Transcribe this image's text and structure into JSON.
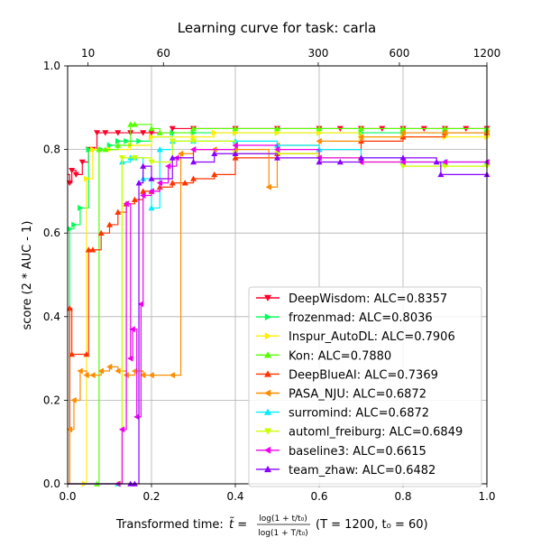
{
  "chart_data": {
    "type": "line",
    "title": "Learning curve for task: carla",
    "xlabel_main": "Transformed time: ",
    "xlabel_tilde": "t̃ = ",
    "xlabel_num": "log(1 + t/t₀)",
    "xlabel_den": "log(1 + T/t₀)",
    "xlabel_params": "(T = 1200,  t₀ = 60)",
    "ylabel": "score (2 * AUC - 1)",
    "xlim": [
      0,
      1
    ],
    "ylim": [
      0,
      1
    ],
    "xticks": [
      0.0,
      0.2,
      0.4,
      0.6,
      0.8,
      1.0
    ],
    "xtick_labels": [
      "0.0",
      "0.2",
      "0.4",
      "0.6",
      "0.8",
      "1.0"
    ],
    "yticks": [
      0.0,
      0.2,
      0.4,
      0.6,
      0.8,
      1.0
    ],
    "ytick_labels": [
      "0.0",
      "0.2",
      "0.4",
      "0.6",
      "0.8",
      "1.0"
    ],
    "top_axis_ticks": [
      {
        "value": 0.0487,
        "label": "10"
      },
      {
        "value": 0.2286,
        "label": "60"
      },
      {
        "value": 0.5977,
        "label": "300"
      },
      {
        "value": 0.7913,
        "label": "600"
      },
      {
        "value": 1.0,
        "label": "1200"
      }
    ],
    "grid": true,
    "legend_position": "lower-right",
    "series": [
      {
        "name": "DeepWisdom: ALC=0.8357",
        "color": "#ff0029",
        "marker": "v",
        "x": [
          0.0,
          0.005,
          0.01,
          0.02,
          0.035,
          0.05,
          0.06,
          0.07,
          0.09,
          0.12,
          0.15,
          0.18,
          0.2,
          0.25,
          0.3,
          0.4,
          0.5,
          0.6,
          0.65,
          0.7,
          0.75,
          0.8,
          0.85,
          0.9,
          0.95,
          1.0
        ],
        "y": [
          0.74,
          0.72,
          0.75,
          0.74,
          0.77,
          0.8,
          0.8,
          0.84,
          0.84,
          0.84,
          0.84,
          0.84,
          0.84,
          0.85,
          0.85,
          0.85,
          0.85,
          0.85,
          0.85,
          0.85,
          0.85,
          0.85,
          0.85,
          0.85,
          0.85,
          0.85
        ]
      },
      {
        "name": "frozenmad: ALC=0.8036",
        "color": "#00ff55",
        "marker": ">",
        "x": [
          0.0,
          0.005,
          0.015,
          0.03,
          0.05,
          0.08,
          0.1,
          0.12,
          0.14,
          0.17,
          0.2,
          0.25,
          0.3,
          0.4,
          0.5,
          0.6,
          0.7,
          0.8,
          0.9,
          1.0
        ],
        "y": [
          0.0,
          0.61,
          0.62,
          0.66,
          0.8,
          0.8,
          0.81,
          0.82,
          0.82,
          0.82,
          0.83,
          0.84,
          0.84,
          0.84,
          0.84,
          0.84,
          0.84,
          0.84,
          0.84,
          0.84
        ]
      },
      {
        "name": "Inspur_AutoDL: ALC=0.7906",
        "color": "#ffee00",
        "marker": ">",
        "x": [
          0.0,
          0.04,
          0.045,
          0.06,
          0.1,
          0.15,
          0.2,
          0.3,
          0.35,
          0.4,
          0.5,
          0.6,
          0.7,
          0.8,
          0.9,
          1.0
        ],
        "y": [
          0.0,
          0.0,
          0.73,
          0.8,
          0.8,
          0.81,
          0.83,
          0.83,
          0.84,
          0.84,
          0.84,
          0.84,
          0.83,
          0.83,
          0.83,
          0.83
        ]
      },
      {
        "name": "Kon: ALC=0.7880",
        "color": "#55ff00",
        "marker": "^",
        "x": [
          0.0,
          0.07,
          0.075,
          0.09,
          0.12,
          0.15,
          0.16,
          0.2,
          0.22,
          0.3,
          0.4,
          0.5,
          0.6,
          0.7,
          0.8,
          0.9,
          1.0
        ],
        "y": [
          0.0,
          0.0,
          0.8,
          0.8,
          0.81,
          0.86,
          0.86,
          0.85,
          0.84,
          0.85,
          0.85,
          0.85,
          0.85,
          0.85,
          0.85,
          0.85,
          0.85
        ]
      },
      {
        "name": "DeepBlueAI: ALC=0.7369",
        "color": "#ff3300",
        "marker": "^",
        "x": [
          0.0,
          0.005,
          0.01,
          0.045,
          0.05,
          0.06,
          0.08,
          0.1,
          0.12,
          0.14,
          0.16,
          0.18,
          0.2,
          0.22,
          0.25,
          0.28,
          0.3,
          0.35,
          0.4,
          0.5,
          0.6,
          0.7,
          0.8,
          0.9,
          1.0
        ],
        "y": [
          0.0,
          0.42,
          0.31,
          0.31,
          0.56,
          0.56,
          0.6,
          0.62,
          0.65,
          0.67,
          0.68,
          0.7,
          0.7,
          0.71,
          0.72,
          0.72,
          0.73,
          0.74,
          0.78,
          0.79,
          0.8,
          0.82,
          0.83,
          0.84,
          0.84
        ]
      },
      {
        "name": "PASA_NJU: ALC=0.6872",
        "color": "#ff8c00",
        "marker": "<",
        "x": [
          0.0,
          0.005,
          0.015,
          0.03,
          0.045,
          0.06,
          0.08,
          0.1,
          0.12,
          0.14,
          0.16,
          0.18,
          0.2,
          0.25,
          0.27,
          0.3,
          0.35,
          0.4,
          0.48,
          0.5,
          0.6,
          0.7,
          0.8,
          0.9,
          1.0
        ],
        "y": [
          0.0,
          0.13,
          0.2,
          0.27,
          0.26,
          0.26,
          0.27,
          0.28,
          0.27,
          0.26,
          0.27,
          0.26,
          0.26,
          0.26,
          0.79,
          0.8,
          0.8,
          0.8,
          0.71,
          0.81,
          0.82,
          0.83,
          0.84,
          0.84,
          0.84
        ]
      },
      {
        "name": "surromind: ALC=0.6872",
        "color": "#00eeff",
        "marker": "^",
        "x": [
          0.0,
          0.12,
          0.13,
          0.15,
          0.16,
          0.18,
          0.2,
          0.22,
          0.25,
          0.3,
          0.4,
          0.5,
          0.6,
          0.7,
          0.8,
          0.9,
          1.0
        ],
        "y": [
          0.0,
          0.0,
          0.77,
          0.78,
          0.78,
          0.73,
          0.66,
          0.8,
          0.82,
          0.82,
          0.82,
          0.81,
          0.8,
          0.78,
          0.77,
          0.77,
          0.77
        ]
      },
      {
        "name": "automl_freiburg: ALC=0.6849",
        "color": "#ccff00",
        "marker": "v",
        "x": [
          0.0,
          0.125,
          0.13,
          0.16,
          0.2,
          0.25,
          0.3,
          0.4,
          0.5,
          0.6,
          0.7,
          0.8,
          0.9,
          1.0
        ],
        "y": [
          0.0,
          0.0,
          0.78,
          0.78,
          0.77,
          0.82,
          0.82,
          0.79,
          0.79,
          0.78,
          0.77,
          0.76,
          0.76,
          0.76
        ]
      },
      {
        "name": "baseline3: ALC=0.6615",
        "color": "#ee00ee",
        "marker": "<",
        "x": [
          0.0,
          0.12,
          0.13,
          0.14,
          0.15,
          0.155,
          0.165,
          0.175,
          0.18,
          0.2,
          0.22,
          0.24,
          0.26,
          0.3,
          0.4,
          0.5,
          0.6,
          0.7,
          0.8,
          0.9,
          1.0
        ],
        "y": [
          0.0,
          0.0,
          0.13,
          0.67,
          0.3,
          0.37,
          0.16,
          0.43,
          0.69,
          0.7,
          0.72,
          0.76,
          0.78,
          0.8,
          0.81,
          0.8,
          0.78,
          0.77,
          0.77,
          0.77,
          0.77
        ]
      },
      {
        "name": "team_zhaw: ALC=0.6482",
        "color": "#8800ff",
        "marker": "^",
        "x": [
          0.0,
          0.15,
          0.16,
          0.17,
          0.18,
          0.2,
          0.25,
          0.3,
          0.35,
          0.4,
          0.5,
          0.6,
          0.65,
          0.7,
          0.8,
          0.88,
          0.89,
          1.0
        ],
        "y": [
          0.0,
          0.0,
          0.0,
          0.72,
          0.76,
          0.73,
          0.78,
          0.77,
          0.79,
          0.79,
          0.78,
          0.77,
          0.77,
          0.78,
          0.78,
          0.77,
          0.74,
          0.74
        ]
      }
    ]
  }
}
